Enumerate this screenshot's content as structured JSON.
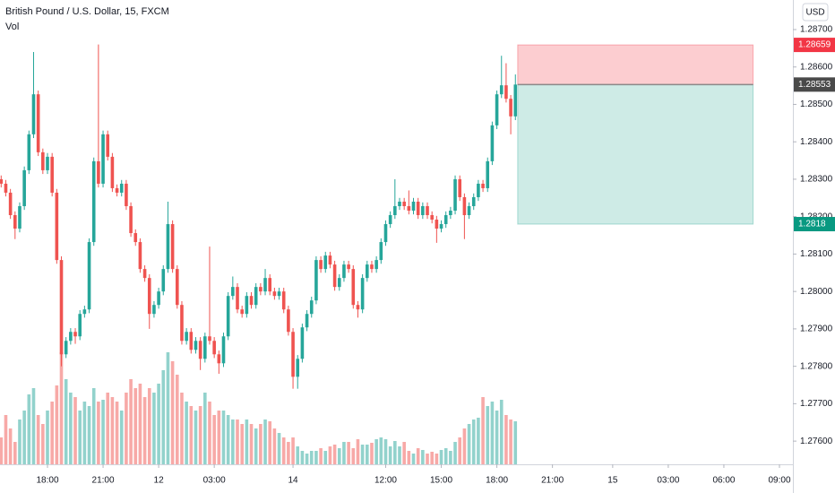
{
  "chart_data": {
    "type": "candlestick",
    "title": "British Pound / U.S. Dollar, 15, FXCM",
    "volume_label": "Vol",
    "currency": "USD",
    "up_color": "#26a69a",
    "down_color": "#ef5350",
    "ylim": [
      1.27538,
      1.28779
    ],
    "yticks": [
      {
        "value": 1.287,
        "label": "1.28700"
      },
      {
        "value": 1.286,
        "label": "1.28600"
      },
      {
        "value": 1.285,
        "label": "1.28500"
      },
      {
        "value": 1.284,
        "label": "1.28400"
      },
      {
        "value": 1.283,
        "label": "1.28300"
      },
      {
        "value": 1.282,
        "label": "1.28200"
      },
      {
        "value": 1.281,
        "label": "1.28100"
      },
      {
        "value": 1.28,
        "label": "1.28000"
      },
      {
        "value": 1.279,
        "label": "1.27900"
      },
      {
        "value": 1.278,
        "label": "1.27800"
      },
      {
        "value": 1.277,
        "label": "1.27700"
      },
      {
        "value": 1.276,
        "label": "1.27600"
      }
    ],
    "xlim": [
      -0.25,
      170.9
    ],
    "xticks": [
      {
        "value": 10,
        "label": "18:00"
      },
      {
        "value": 22,
        "label": "21:00"
      },
      {
        "value": 34,
        "label": "12"
      },
      {
        "value": 46,
        "label": "03:00"
      },
      {
        "value": 63,
        "label": "14"
      },
      {
        "value": 83,
        "label": "12:00"
      },
      {
        "value": 95,
        "label": "15:00"
      },
      {
        "value": 107,
        "label": "18:00"
      },
      {
        "value": 119,
        "label": "21:00"
      },
      {
        "value": 132,
        "label": "15"
      },
      {
        "value": 144,
        "label": "03:00"
      },
      {
        "value": 156,
        "label": "06:00"
      },
      {
        "value": 168,
        "label": "09:00"
      }
    ],
    "grid": false,
    "vlim": [
      0,
      200
    ],
    "open": [
      1.283,
      1.28288,
      1.28264,
      1.28204,
      1.28168,
      1.28228,
      1.28324,
      1.2842,
      1.28527,
      1.28372,
      1.28324,
      1.2836,
      1.28264,
      1.28084,
      1.27832,
      1.27868,
      1.27892,
      1.2788,
      1.2794,
      1.27952,
      1.28132,
      1.28348,
      1.28288,
      1.2842,
      1.2836,
      1.28276,
      1.28264,
      1.28288,
      1.28228,
      1.28156,
      1.28132,
      1.2806,
      1.28036,
      1.2794,
      1.27964,
      1.28,
      1.2806,
      1.2818,
      1.2806,
      1.27964,
      1.27868,
      1.27892,
      1.27844,
      1.27868,
      1.2782,
      1.2788,
      1.27868,
      1.27832,
      1.27808,
      1.2788,
      1.27988,
      1.28012,
      1.27952,
      1.2794,
      1.27988,
      1.27964,
      1.28012,
      1.28,
      1.28036,
      1.28,
      1.27988,
      1.28,
      1.27952,
      1.27892,
      1.27772,
      1.2782,
      1.27904,
      1.2794,
      1.27976,
      1.28084,
      1.2806,
      1.28096,
      1.28072,
      1.28012,
      1.28036,
      1.28072,
      1.2806,
      1.27964,
      1.27952,
      1.28036,
      1.28072,
      1.2806,
      1.28084,
      1.28132,
      1.2818,
      1.28204,
      1.28228,
      1.2824,
      1.28228,
      1.28216,
      1.2824,
      1.28204,
      1.28228,
      1.28204,
      1.28192,
      1.28168,
      1.2818,
      1.28204,
      1.28216,
      1.283,
      1.28252,
      1.28204,
      1.28228,
      1.28252,
      1.28288,
      1.28276,
      1.28348,
      1.28444,
      1.28527,
      1.28551,
      1.28515,
      1.28468
    ],
    "high": [
      1.2831,
      1.28298,
      1.28274,
      1.28214,
      1.28238,
      1.28334,
      1.2843,
      1.2864,
      1.28537,
      1.28382,
      1.2837,
      1.2837,
      1.28274,
      1.28094,
      1.27878,
      1.27902,
      1.27902,
      1.2795,
      1.27962,
      1.28142,
      1.28358,
      1.2866,
      1.2843,
      1.2843,
      1.2837,
      1.28286,
      1.28298,
      1.28298,
      1.28238,
      1.28166,
      1.28142,
      1.2807,
      1.28046,
      1.27974,
      1.2801,
      1.2807,
      1.2824,
      1.2819,
      1.2807,
      1.27974,
      1.27902,
      1.27902,
      1.27878,
      1.27878,
      1.2789,
      1.2812,
      1.27878,
      1.27842,
      1.2789,
      1.27998,
      1.2804,
      1.28022,
      1.27962,
      1.27998,
      1.27998,
      1.28022,
      1.28022,
      1.2806,
      1.28046,
      1.2801,
      1.2801,
      1.2801,
      1.27962,
      1.27902,
      1.2783,
      1.27914,
      1.2795,
      1.27986,
      1.28094,
      1.28094,
      1.28106,
      1.28106,
      1.28082,
      1.28046,
      1.28082,
      1.28082,
      1.2807,
      1.27974,
      1.28046,
      1.28082,
      1.28082,
      1.28094,
      1.28142,
      1.2819,
      1.28214,
      1.283,
      1.2825,
      1.2825,
      1.2827,
      1.2825,
      1.2825,
      1.28238,
      1.28238,
      1.28214,
      1.28202,
      1.2819,
      1.28214,
      1.28226,
      1.2831,
      1.2831,
      1.28262,
      1.28238,
      1.28262,
      1.28298,
      1.28298,
      1.28358,
      1.28454,
      1.28537,
      1.2863,
      1.2861,
      1.28525,
      1.2858
    ],
    "low": [
      1.28278,
      1.28254,
      1.28194,
      1.2814,
      1.28158,
      1.28218,
      1.28314,
      1.2841,
      1.28362,
      1.28314,
      1.28314,
      1.28254,
      1.28074,
      1.278,
      1.27822,
      1.27858,
      1.2786,
      1.2787,
      1.2793,
      1.27942,
      1.28122,
      1.28278,
      1.28278,
      1.2835,
      1.28266,
      1.28254,
      1.28254,
      1.28218,
      1.28146,
      1.28122,
      1.2805,
      1.28026,
      1.279,
      1.2793,
      1.27954,
      1.2799,
      1.2805,
      1.2805,
      1.27954,
      1.27858,
      1.27858,
      1.27834,
      1.27834,
      1.2779,
      1.2781,
      1.27858,
      1.27822,
      1.2778,
      1.27798,
      1.2787,
      1.27978,
      1.27942,
      1.2793,
      1.2793,
      1.27954,
      1.27954,
      1.2799,
      1.2799,
      1.2799,
      1.27978,
      1.27978,
      1.27942,
      1.27882,
      1.2774,
      1.2774,
      1.2781,
      1.27894,
      1.2793,
      1.27966,
      1.2805,
      1.2805,
      1.28062,
      1.28002,
      1.28002,
      1.28026,
      1.2805,
      1.27954,
      1.2793,
      1.27942,
      1.28026,
      1.2805,
      1.2805,
      1.28074,
      1.28122,
      1.2817,
      1.28194,
      1.28218,
      1.28218,
      1.28206,
      1.28206,
      1.28194,
      1.28194,
      1.28194,
      1.28182,
      1.2813,
      1.28158,
      1.2817,
      1.28194,
      1.28206,
      1.28242,
      1.2814,
      1.28194,
      1.28218,
      1.28242,
      1.28266,
      1.28266,
      1.28338,
      1.28434,
      1.28517,
      1.28505,
      1.2842,
      1.28458
    ],
    "close": [
      1.28288,
      1.28264,
      1.28204,
      1.28168,
      1.28228,
      1.28324,
      1.2842,
      1.28527,
      1.28372,
      1.28324,
      1.2836,
      1.28264,
      1.28084,
      1.27832,
      1.27868,
      1.27892,
      1.2788,
      1.2794,
      1.27952,
      1.28132,
      1.28348,
      1.28288,
      1.2842,
      1.2836,
      1.28276,
      1.28264,
      1.28288,
      1.28228,
      1.28156,
      1.28132,
      1.2806,
      1.28036,
      1.2794,
      1.27964,
      1.28,
      1.2806,
      1.2818,
      1.2806,
      1.27964,
      1.27868,
      1.27892,
      1.27844,
      1.27868,
      1.2782,
      1.2788,
      1.27868,
      1.27832,
      1.27808,
      1.2788,
      1.27988,
      1.28012,
      1.27952,
      1.2794,
      1.27988,
      1.27964,
      1.28012,
      1.28,
      1.28036,
      1.28,
      1.27988,
      1.28,
      1.27952,
      1.27892,
      1.27772,
      1.2782,
      1.27904,
      1.2794,
      1.27976,
      1.28084,
      1.2806,
      1.28096,
      1.28072,
      1.28012,
      1.28036,
      1.28072,
      1.2806,
      1.27964,
      1.27952,
      1.28036,
      1.28072,
      1.2806,
      1.28084,
      1.28132,
      1.2818,
      1.28204,
      1.28228,
      1.2824,
      1.28228,
      1.28216,
      1.2824,
      1.28204,
      1.28228,
      1.28204,
      1.28192,
      1.28168,
      1.2818,
      1.28204,
      1.28216,
      1.283,
      1.28252,
      1.28204,
      1.28228,
      1.28252,
      1.28288,
      1.28276,
      1.28348,
      1.28444,
      1.28527,
      1.28551,
      1.28515,
      1.28468,
      1.28553
    ],
    "volume": [
      30,
      55,
      40,
      25,
      50,
      60,
      78,
      85,
      55,
      45,
      60,
      70,
      88,
      125,
      95,
      80,
      75,
      60,
      70,
      65,
      85,
      70,
      72,
      80,
      75,
      70,
      60,
      80,
      95,
      85,
      90,
      75,
      85,
      80,
      90,
      105,
      125,
      115,
      100,
      80,
      70,
      65,
      60,
      65,
      80,
      70,
      55,
      60,
      60,
      55,
      50,
      50,
      45,
      50,
      45,
      40,
      45,
      50,
      48,
      40,
      35,
      30,
      25,
      30,
      20,
      15,
      12,
      15,
      15,
      18,
      15,
      20,
      22,
      18,
      25,
      25,
      18,
      28,
      22,
      22,
      24,
      28,
      30,
      28,
      20,
      26,
      20,
      25,
      15,
      12,
      18,
      16,
      12,
      14,
      12,
      16,
      18,
      15,
      25,
      30,
      40,
      45,
      50,
      52,
      75,
      65,
      70,
      60,
      72,
      55,
      50,
      48
    ],
    "position": {
      "start": 111.5,
      "end": 162.3,
      "stop": 1.28659,
      "entry": 1.28553,
      "target": 1.2818,
      "stop_color": "#f23645",
      "entry_color": "#4a4a4a",
      "target_color": "#089981"
    }
  }
}
